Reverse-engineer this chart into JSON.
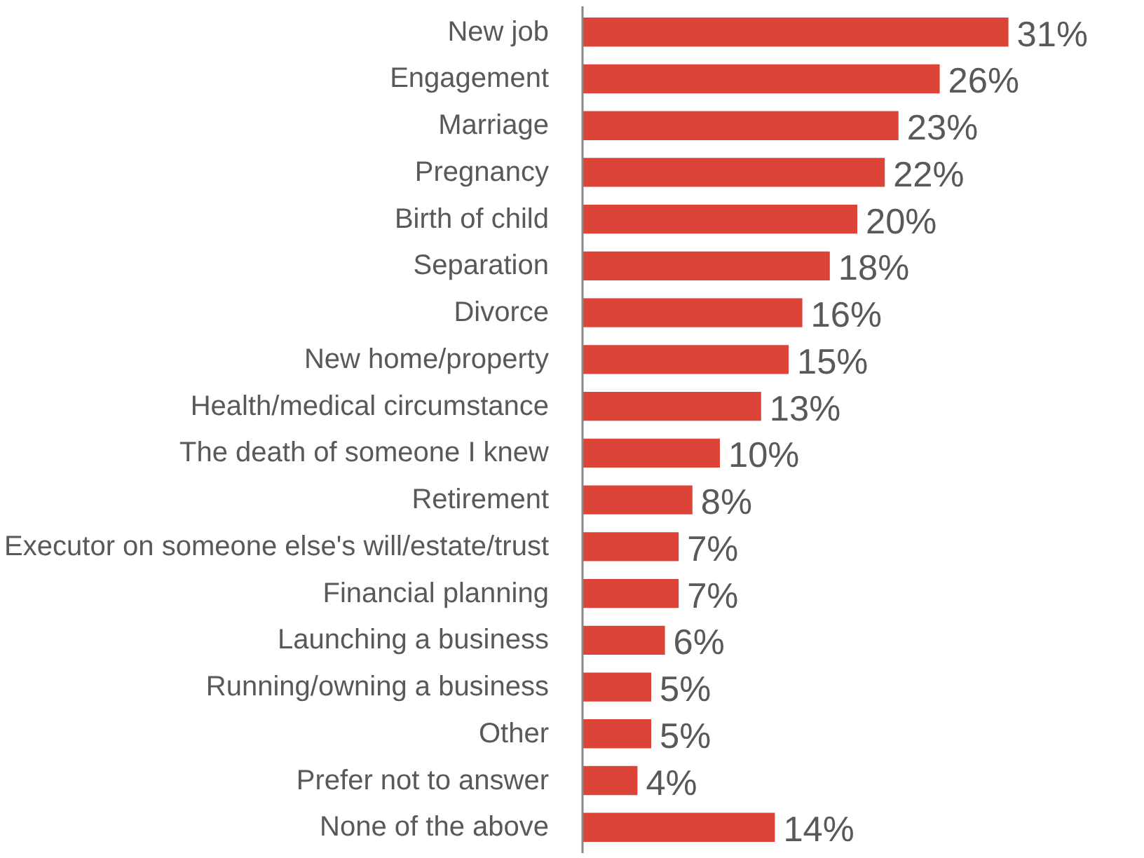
{
  "chart_data": {
    "type": "bar",
    "orientation": "horizontal",
    "color": "#db4437",
    "categories": [
      "New job",
      "Engagement",
      "Marriage",
      "Pregnancy",
      "Birth of child",
      "Separation",
      "Divorce",
      "New home/property",
      "Health/medical circumstance",
      "The death of someone I knew",
      "Retirement",
      "Executor on someone else's will/estate/trust",
      "Financial planning",
      "Launching a business",
      "Running/owning a business",
      "Other",
      "Prefer not to answer",
      "None of the above"
    ],
    "values": [
      31,
      26,
      23,
      22,
      20,
      18,
      16,
      15,
      13,
      10,
      8,
      7,
      7,
      6,
      5,
      5,
      4,
      14
    ],
    "value_labels": [
      "31%",
      "26%",
      "23%",
      "22%",
      "20%",
      "18%",
      "16%",
      "15%",
      "13%",
      "10%",
      "8%",
      "7%",
      "7%",
      "6%",
      "5%",
      "5%",
      "4%",
      "14%"
    ]
  }
}
